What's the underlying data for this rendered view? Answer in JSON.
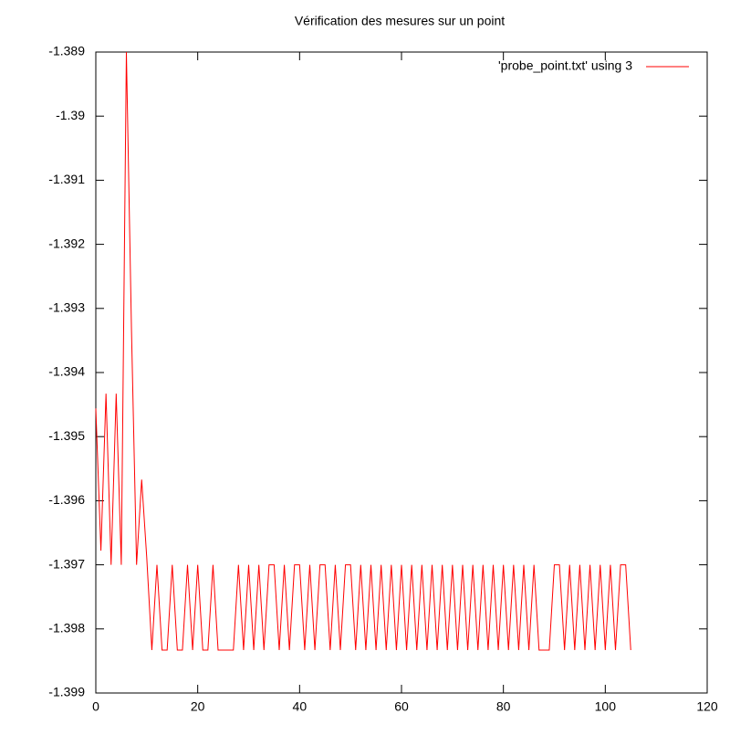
{
  "chart_data": {
    "type": "line",
    "title": "Vérification des mesures sur un point",
    "x": [
      0,
      1,
      2,
      3,
      4,
      5,
      6,
      7,
      8,
      9,
      10,
      11,
      12,
      13,
      14,
      15,
      16,
      17,
      18,
      19,
      20,
      21,
      22,
      23,
      24,
      25,
      26,
      27,
      28,
      29,
      30,
      31,
      32,
      33,
      34,
      35,
      36,
      37,
      38,
      39,
      40,
      41,
      42,
      43,
      44,
      45,
      46,
      47,
      48,
      49,
      50,
      51,
      52,
      53,
      54,
      55,
      56,
      57,
      58,
      59,
      60,
      61,
      62,
      63,
      64,
      65,
      66,
      67,
      68,
      69,
      70,
      71,
      72,
      73,
      74,
      75,
      76,
      77,
      78,
      79,
      80,
      81,
      82,
      83,
      84,
      85,
      86,
      87,
      88,
      89,
      90,
      91,
      92,
      93,
      94,
      95,
      96,
      97,
      98,
      99,
      100,
      101,
      102,
      103,
      104,
      105
    ],
    "series": [
      {
        "name": "'probe_point.txt' using 3",
        "color": "#ff0000",
        "values": [
          -1.39456,
          -1.39678,
          -1.39433,
          -1.397,
          -1.39433,
          -1.397,
          -1.389,
          -1.39333,
          -1.397,
          -1.39567,
          -1.39689,
          -1.39833,
          -1.397,
          -1.39833,
          -1.39833,
          -1.397,
          -1.39833,
          -1.39833,
          -1.397,
          -1.39833,
          -1.397,
          -1.39833,
          -1.39833,
          -1.397,
          -1.39833,
          -1.39833,
          -1.39833,
          -1.39833,
          -1.397,
          -1.39833,
          -1.397,
          -1.39833,
          -1.397,
          -1.39833,
          -1.397,
          -1.397,
          -1.39833,
          -1.397,
          -1.39833,
          -1.397,
          -1.397,
          -1.39833,
          -1.397,
          -1.39833,
          -1.397,
          -1.397,
          -1.39833,
          -1.397,
          -1.39833,
          -1.397,
          -1.397,
          -1.39833,
          -1.397,
          -1.39833,
          -1.397,
          -1.39833,
          -1.397,
          -1.39833,
          -1.397,
          -1.39833,
          -1.397,
          -1.39833,
          -1.397,
          -1.39833,
          -1.397,
          -1.39833,
          -1.397,
          -1.39833,
          -1.397,
          -1.39833,
          -1.397,
          -1.39833,
          -1.397,
          -1.39833,
          -1.397,
          -1.39833,
          -1.397,
          -1.39833,
          -1.397,
          -1.39833,
          -1.397,
          -1.39833,
          -1.397,
          -1.39833,
          -1.397,
          -1.39833,
          -1.397,
          -1.39833,
          -1.39833,
          -1.39833,
          -1.397,
          -1.397,
          -1.39833,
          -1.397,
          -1.39833,
          -1.397,
          -1.39833,
          -1.397,
          -1.39833,
          -1.397,
          -1.39833,
          -1.397,
          -1.39833,
          -1.397,
          -1.397,
          -1.39833
        ]
      }
    ],
    "xlim": [
      0,
      120
    ],
    "xticks": [
      0,
      20,
      40,
      60,
      80,
      100,
      120
    ],
    "ylim": [
      -1.399,
      -1.389
    ],
    "yticks": [
      -1.399,
      -1.398,
      -1.397,
      -1.396,
      -1.395,
      -1.394,
      -1.393,
      -1.392,
      -1.391,
      -1.39,
      -1.389
    ],
    "legend": "top-right"
  }
}
